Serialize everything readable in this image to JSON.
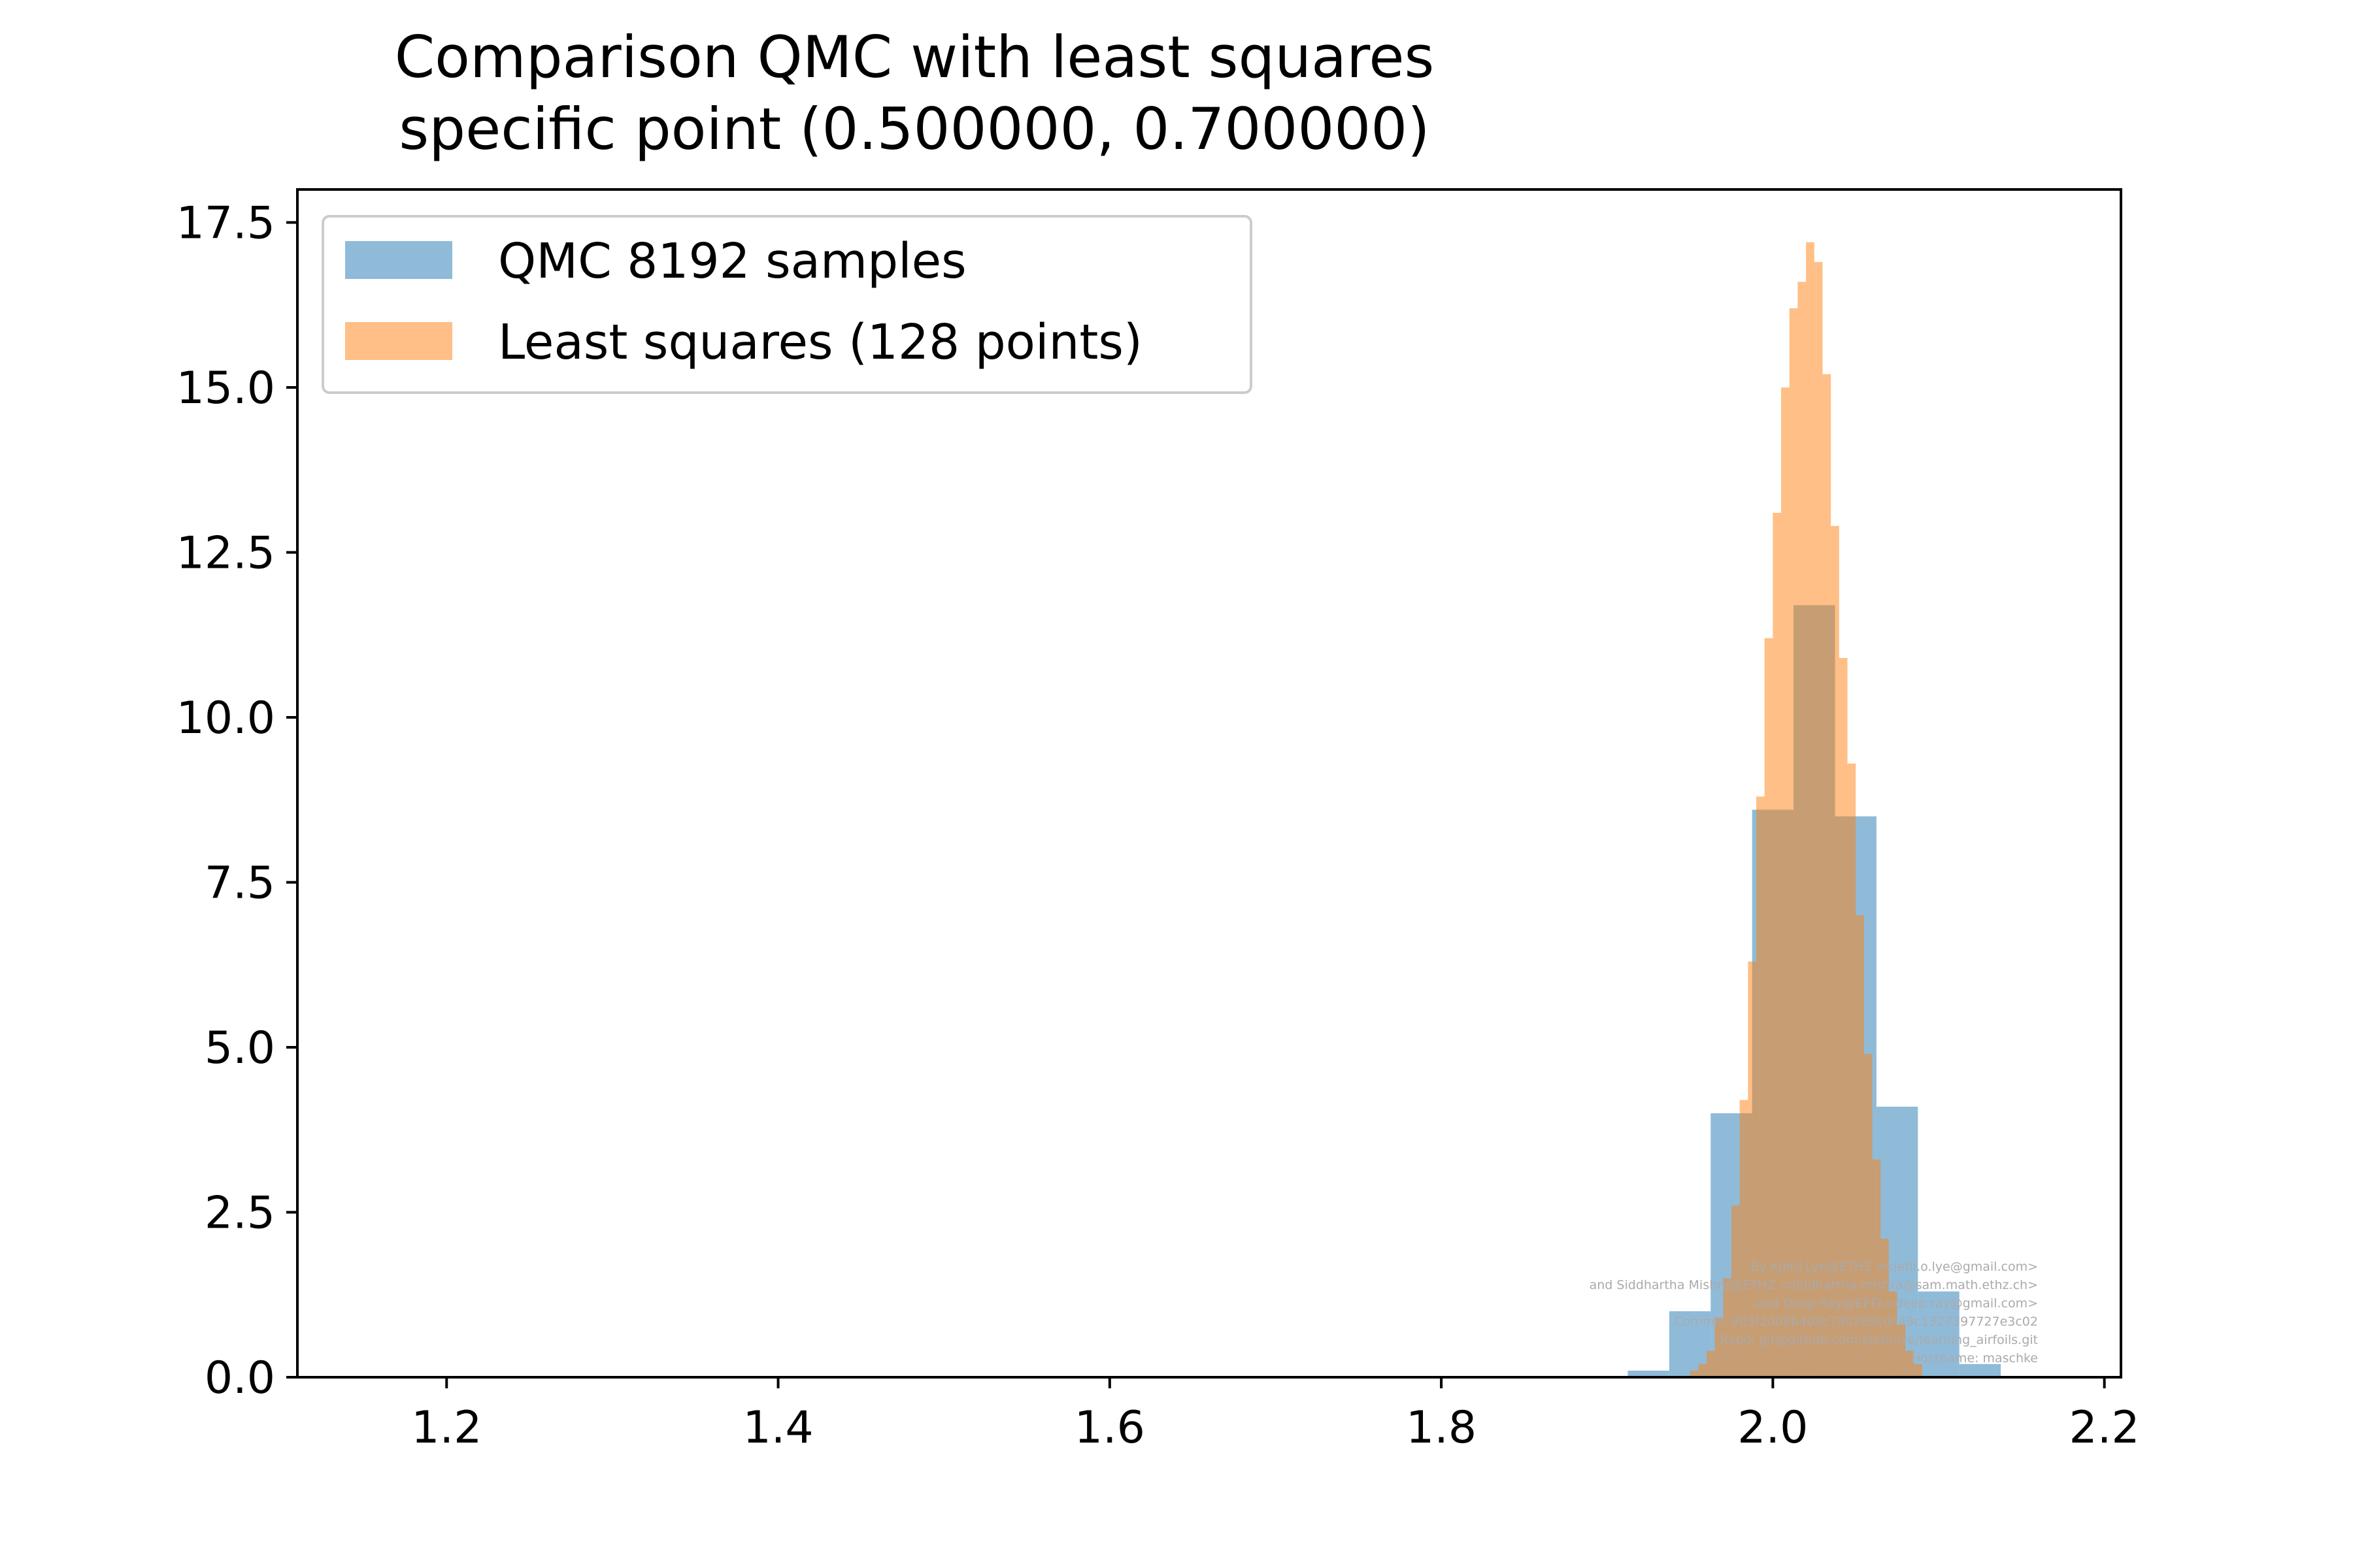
{
  "chart_data": {
    "type": "bar",
    "title": "Comparison QMC with least squares",
    "subtitle": "specific point  (0.500000, 0.700000)",
    "xlabel": "",
    "ylabel": "",
    "xlim": [
      1.11,
      2.21
    ],
    "ylim": [
      0,
      18.0
    ],
    "xticks": [
      1.2,
      1.4,
      1.6,
      1.8,
      2.0,
      2.2
    ],
    "xtick_labels": [
      "1.2",
      "1.4",
      "1.6",
      "1.8",
      "2.0",
      "2.2"
    ],
    "yticks": [
      0.0,
      2.5,
      5.0,
      7.5,
      10.0,
      12.5,
      15.0,
      17.5
    ],
    "ytick_labels": [
      "0.0",
      "2.5",
      "5.0",
      "7.5",
      "10.0",
      "12.5",
      "15.0",
      "17.5"
    ],
    "grid": false,
    "legend_position": "upper-left",
    "series": [
      {
        "name": "QMC 8192 samples",
        "color": "#1f77b4",
        "opacity": 0.5,
        "bin_edges": [
          1.9125,
          1.9375,
          1.9625,
          1.9875,
          2.0125,
          2.0375,
          2.0625,
          2.0875,
          2.1125,
          2.1375
        ],
        "values": [
          0.1,
          1.0,
          4.0,
          8.6,
          11.7,
          8.5,
          4.1,
          1.3,
          0.2
        ]
      },
      {
        "name": "Least squares (128 points)",
        "color": "#ff7f0e",
        "opacity": 0.5,
        "bin_edges": [
          1.95,
          1.955,
          1.96,
          1.965,
          1.97,
          1.975,
          1.98,
          1.985,
          1.99,
          1.995,
          2.0,
          2.005,
          2.01,
          2.015,
          2.02,
          2.025,
          2.03,
          2.035,
          2.04,
          2.045,
          2.05,
          2.055,
          2.06,
          2.065,
          2.07,
          2.075,
          2.08,
          2.085,
          2.09
        ],
        "values": [
          0.1,
          0.2,
          0.4,
          0.9,
          1.5,
          2.6,
          4.2,
          6.3,
          8.8,
          11.2,
          13.1,
          15.0,
          16.2,
          16.6,
          17.2,
          16.9,
          15.2,
          12.9,
          10.9,
          9.3,
          7.0,
          4.9,
          3.3,
          2.1,
          1.3,
          0.8,
          0.4,
          0.2
        ]
      }
    ]
  },
  "watermark": {
    "lines": [
      "By Kjetil Lye@ETHZ <kjetil.o.lye@gmail.com>",
      "and Siddhartha Mishra@ETHZ <siddhartha.mishra@sam.math.ethz.ch>",
      "and Deep Ray@EPFL<deep.ray@gmail.com>",
      "Commit: 903f2d08b408c730369cdc49c1327397727e3c02",
      "Repo: git@github.com:kjetil-lye/learning_airfoils.git",
      "Hostname: maschke"
    ]
  }
}
